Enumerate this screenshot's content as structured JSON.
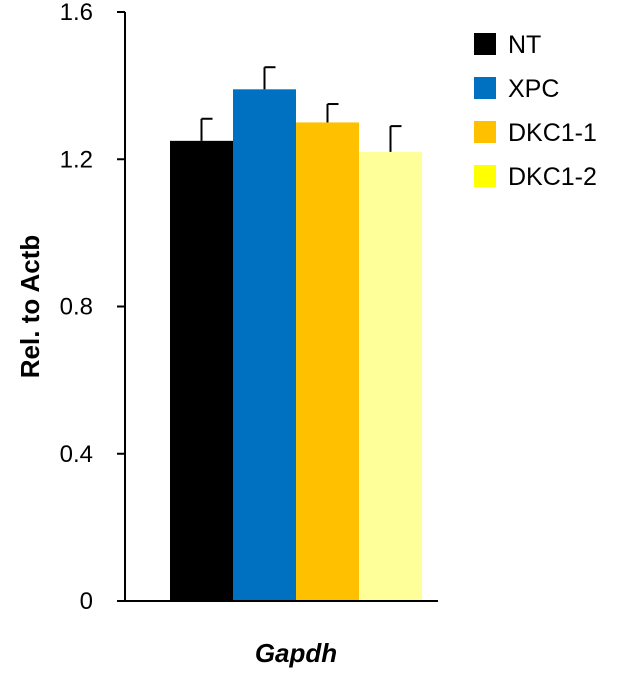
{
  "chart_data": {
    "type": "bar",
    "categories": [
      "Gapdh"
    ],
    "category_style": "italic-bold",
    "series": [
      {
        "name": "NT",
        "values": [
          1.25
        ],
        "error": [
          0.06
        ],
        "color": "#000000"
      },
      {
        "name": "XPC",
        "values": [
          1.39
        ],
        "error": [
          0.06
        ],
        "color": "#0070C0"
      },
      {
        "name": "DKC1-1",
        "values": [
          1.3
        ],
        "error": [
          0.05
        ],
        "color": "#FFC000"
      },
      {
        "name": "DKC1-2",
        "values": [
          1.22
        ],
        "error": [
          0.07
        ],
        "color": "#FFFF99"
      }
    ],
    "legend_swatch_colors": [
      "#000000",
      "#0070C0",
      "#FFC000",
      "#FFFF00"
    ],
    "title": "",
    "xlabel": "",
    "ylabel": "Rel. to Actb",
    "ylim": [
      0,
      1.6
    ],
    "yticks": [
      0,
      0.4,
      0.8,
      1.2,
      1.6
    ],
    "ytick_labels": [
      "0",
      "0.4",
      "0.8",
      "1.2",
      "1.6"
    ],
    "grid": false,
    "legend_position": "top-right",
    "error_bars": "upper"
  }
}
